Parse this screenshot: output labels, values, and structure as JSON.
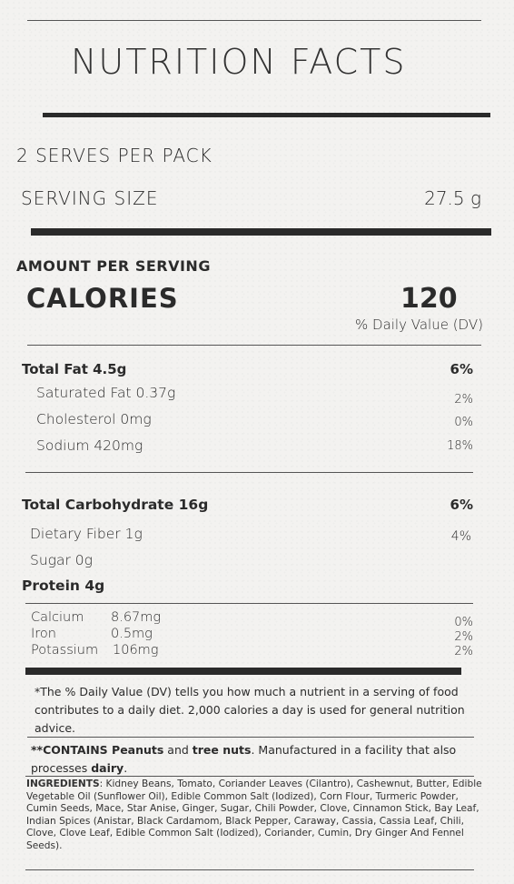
{
  "title": "NUTRITION FACTS",
  "serves": "2 SERVES PER PACK",
  "serving_size": {
    "label": "SERVING SIZE",
    "value": "27.5 g"
  },
  "amount_per_serving": "AMOUNT PER SERVING",
  "calories": {
    "label": "CALORIES",
    "value": "120"
  },
  "dv_header": "% Daily Value (DV)",
  "nutrients": {
    "total_fat": {
      "label": "Total Fat 4.5g",
      "dv": "6%"
    },
    "saturated_fat": {
      "label": "Saturated Fat 0.37g",
      "dv": "2%"
    },
    "cholesterol": {
      "label": "Cholesterol 0mg",
      "dv": "0%"
    },
    "sodium": {
      "label": "Sodium 420mg",
      "dv": "18%"
    },
    "total_carb": {
      "label": "Total Carbohydrate 16g",
      "dv": "6%"
    },
    "fiber": {
      "label": "Dietary Fiber 1g",
      "dv": "4%"
    },
    "sugar": {
      "label": "Sugar 0g"
    },
    "protein": {
      "label": "Protein 4g"
    }
  },
  "minerals": [
    {
      "name": "Calcium",
      "amount": "8.67mg",
      "dv": "0%"
    },
    {
      "name": "Iron",
      "amount": "0.5mg",
      "dv": "2%"
    },
    {
      "name": "Potassium",
      "amount": "106mg",
      "dv": "2%"
    }
  ],
  "footnote": "*The % Daily Value (DV) tells you how much a nutrient in a serving of food contributes to a daily diet. 2,000 calories a day is used for general nutrition advice.",
  "contains": {
    "prefix": "**CONTAINS Peanuts",
    "and": " and ",
    "tree_nuts": "tree nuts",
    "middle": ". Manufactured in a facility that also processes ",
    "dairy": "dairy",
    "end": "."
  },
  "ingredients": {
    "label": "INGREDIENTS",
    "text": ": Kidney Beans, Tomato, Coriander Leaves (Cilantro), Cashewnut, Butter, Edible Vegetable Oil (Sunflower Oil), Edible Common Salt (Iodized), Corn Flour, Turmeric Powder, Cumin Seeds, Mace, Star Anise, Ginger, Sugar, Chili Powder, Clove, Cinnamon Stick, Bay Leaf, Indian Spices (Anistar, Black Cardamom, Black Pepper, Caraway, Cassia, Cassia Leaf, Chili, Clove, Clove Leaf, Edible Common Salt (Iodized), Coriander, Cumin, Dry Ginger And Fennel Seeds)."
  }
}
